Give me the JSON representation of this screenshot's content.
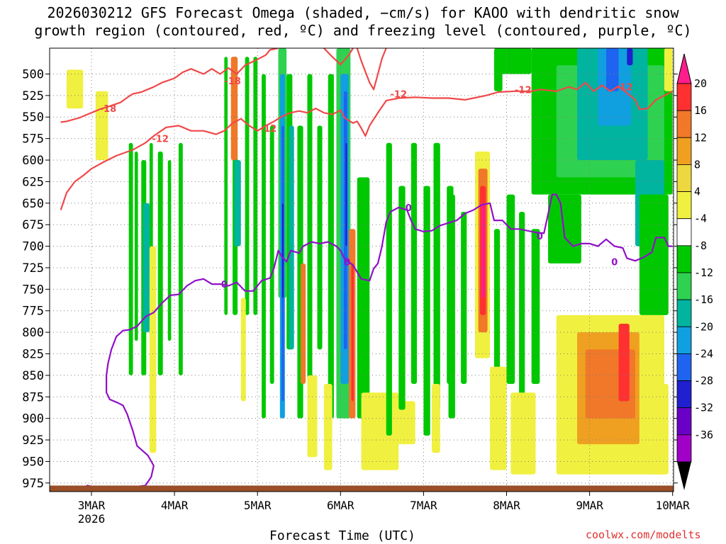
{
  "title_line1": "2026030212 GFS Forecast Omega (shaded, −cm/s) for KAOO with dendritic snow",
  "title_line2": "growth region (contoured, red, ºC) and freezing level (contoured, purple, ºC)",
  "x_axis_label": "Forecast Time (UTC)",
  "credit": "coolwx.com/modelts",
  "colors": {
    "temp_contour": "#f04848",
    "freezing_contour": "#9010c8",
    "terrain": "#9a4f28"
  },
  "chart_data": {
    "type": "heatmap",
    "title": "2026030212 GFS Forecast Omega (shaded, −cm/s) for KAOO with dendritic snow growth region (contoured, red, ºC) and freezing level (contoured, purple, ºC)",
    "xlabel": "Forecast Time (UTC)",
    "x_ticks": [
      {
        "label": "3MAR",
        "sublabel": "2026",
        "day": 3
      },
      {
        "label": "4MAR",
        "day": 4
      },
      {
        "label": "5MAR",
        "day": 5
      },
      {
        "label": "6MAR",
        "day": 6
      },
      {
        "label": "7MAR",
        "day": 7
      },
      {
        "label": "8MAR",
        "day": 8
      },
      {
        "label": "9MAR",
        "day": 9
      },
      {
        "label": "10MAR",
        "day": 10
      }
    ],
    "xlim": [
      2.63,
      10.0
    ],
    "y_ticks": [
      500,
      525,
      550,
      575,
      600,
      625,
      650,
      675,
      700,
      725,
      750,
      775,
      800,
      825,
      850,
      875,
      900,
      925,
      950,
      975
    ],
    "ylim": [
      470,
      985
    ],
    "y_reversed": true,
    "grid": true,
    "colorbar": {
      "labels": [
        20,
        16,
        12,
        8,
        4,
        -4,
        -8,
        -12,
        -16,
        -20,
        -24,
        -28,
        -32,
        -36
      ],
      "colors": [
        "#ff1c8c",
        "#ff3030",
        "#f07828",
        "#f0a020",
        "#eed840",
        "#f0f040",
        "#ffffff",
        "#00c800",
        "#2ed250",
        "#00b4a0",
        "#10a0e0",
        "#1e64f0",
        "#2020d0",
        "#6a00c8",
        "#a000c8",
        "#b4b4b4"
      ]
    },
    "series": [
      {
        "label": "-18",
        "contour_level": -18,
        "color": "#f04848",
        "points": [
          [
            2.63,
            556
          ],
          [
            2.7,
            555
          ],
          [
            2.85,
            551
          ],
          [
            3.0,
            545
          ],
          [
            3.1,
            541
          ],
          [
            3.2,
            538
          ],
          [
            3.35,
            533
          ],
          [
            3.45,
            526
          ],
          [
            3.5,
            523
          ],
          [
            3.6,
            521
          ],
          [
            3.75,
            515
          ],
          [
            3.85,
            510
          ],
          [
            4.0,
            505
          ],
          [
            4.1,
            498
          ],
          [
            4.2,
            494
          ],
          [
            4.35,
            500
          ],
          [
            4.45,
            494
          ],
          [
            4.55,
            500
          ],
          [
            4.65,
            493
          ],
          [
            4.75,
            500
          ],
          [
            4.85,
            490
          ],
          [
            5.0,
            483
          ],
          [
            5.1,
            478
          ],
          [
            5.15,
            472
          ],
          [
            5.25,
            470
          ]
        ]
      },
      {
        "label": "-12",
        "contour_level": -12,
        "color": "#f04848",
        "points": [
          [
            2.63,
            658
          ],
          [
            2.7,
            638
          ],
          [
            2.8,
            625
          ],
          [
            2.9,
            618
          ],
          [
            3.0,
            610
          ],
          [
            3.15,
            602
          ],
          [
            3.3,
            595
          ],
          [
            3.5,
            588
          ],
          [
            3.65,
            580
          ],
          [
            3.75,
            572
          ],
          [
            3.9,
            562
          ],
          [
            4.05,
            560
          ],
          [
            4.2,
            566
          ],
          [
            4.35,
            566
          ],
          [
            4.5,
            570
          ],
          [
            4.6,
            566
          ],
          [
            4.7,
            557
          ],
          [
            4.8,
            552
          ],
          [
            4.9,
            560
          ],
          [
            5.0,
            566
          ],
          [
            5.1,
            560
          ],
          [
            5.2,
            555
          ],
          [
            5.3,
            549
          ],
          [
            5.4,
            545
          ],
          [
            5.5,
            543
          ],
          [
            5.6,
            545
          ],
          [
            5.7,
            540
          ],
          [
            5.8,
            545
          ],
          [
            5.9,
            547
          ],
          [
            6.0,
            542
          ],
          [
            6.05,
            551
          ],
          [
            6.15,
            557
          ],
          [
            6.2,
            555
          ],
          [
            6.25,
            563
          ],
          [
            6.3,
            572
          ],
          [
            6.35,
            560
          ],
          [
            6.45,
            545
          ],
          [
            6.55,
            531
          ],
          [
            6.7,
            528
          ],
          [
            6.9,
            527
          ],
          [
            7.1,
            528
          ],
          [
            7.3,
            528
          ],
          [
            7.5,
            530
          ],
          [
            7.6,
            528
          ],
          [
            7.75,
            525
          ],
          [
            7.9,
            521
          ],
          [
            8.1,
            520
          ],
          [
            8.3,
            520
          ],
          [
            8.4,
            518
          ],
          [
            8.6,
            520
          ],
          [
            8.75,
            515
          ],
          [
            8.85,
            518
          ],
          [
            8.95,
            510
          ],
          [
            9.05,
            520
          ],
          [
            9.15,
            513
          ],
          [
            9.25,
            520
          ],
          [
            9.35,
            514
          ],
          [
            9.45,
            522
          ],
          [
            9.55,
            530
          ],
          [
            9.6,
            541
          ],
          [
            9.7,
            540
          ],
          [
            9.8,
            530
          ],
          [
            9.9,
            525
          ],
          [
            10.0,
            520
          ]
        ]
      },
      {
        "label": "-18",
        "contour_level": -18,
        "color": "#f04848",
        "points": [
          [
            5.8,
            470
          ],
          [
            5.9,
            480
          ],
          [
            6.0,
            489
          ],
          [
            6.1,
            478
          ],
          [
            6.15,
            470
          ]
        ]
      },
      {
        "label": "-18",
        "contour_level": -18,
        "color": "#f04848",
        "points": [
          [
            6.2,
            470
          ],
          [
            6.25,
            485
          ],
          [
            6.35,
            510
          ],
          [
            6.4,
            518
          ],
          [
            6.45,
            500
          ],
          [
            6.5,
            482
          ],
          [
            6.55,
            470
          ]
        ]
      },
      {
        "label": "0",
        "contour_level": 0,
        "color": "#9010c8",
        "points": [
          [
            2.9,
            981
          ],
          [
            2.95,
            978
          ],
          [
            3.05,
            980
          ],
          [
            3.4,
            981
          ],
          [
            3.65,
            978
          ],
          [
            3.72,
            968
          ],
          [
            3.75,
            955
          ],
          [
            3.68,
            943
          ],
          [
            3.55,
            932
          ],
          [
            3.5,
            915
          ],
          [
            3.43,
            895
          ],
          [
            3.38,
            885
          ],
          [
            3.32,
            882
          ],
          [
            3.22,
            878
          ],
          [
            3.18,
            870
          ],
          [
            3.18,
            850
          ],
          [
            3.2,
            836
          ],
          [
            3.24,
            820
          ],
          [
            3.3,
            805
          ],
          [
            3.38,
            798
          ],
          [
            3.46,
            797
          ],
          [
            3.55,
            793
          ],
          [
            3.65,
            782
          ],
          [
            3.75,
            777
          ],
          [
            3.85,
            766
          ],
          [
            3.95,
            757
          ],
          [
            4.05,
            756
          ],
          [
            4.15,
            746
          ],
          [
            4.25,
            740
          ],
          [
            4.35,
            738
          ],
          [
            4.45,
            744
          ],
          [
            4.55,
            744
          ],
          [
            4.65,
            746
          ],
          [
            4.75,
            742
          ],
          [
            4.85,
            752
          ],
          [
            4.95,
            752
          ],
          [
            5.05,
            740
          ],
          [
            5.15,
            737
          ],
          [
            5.2,
            725
          ],
          [
            5.25,
            705
          ],
          [
            5.3,
            713
          ],
          [
            5.35,
            718
          ],
          [
            5.4,
            705
          ],
          [
            5.5,
            708
          ],
          [
            5.55,
            700
          ],
          [
            5.65,
            695
          ],
          [
            5.75,
            697
          ],
          [
            5.85,
            695
          ],
          [
            5.95,
            700
          ],
          [
            6.0,
            705
          ],
          [
            6.05,
            715
          ],
          [
            6.15,
            722
          ],
          [
            6.25,
            738
          ],
          [
            6.35,
            740
          ],
          [
            6.4,
            726
          ],
          [
            6.45,
            720
          ],
          [
            6.5,
            700
          ],
          [
            6.55,
            672
          ],
          [
            6.6,
            660
          ],
          [
            6.7,
            655
          ],
          [
            6.8,
            658
          ],
          [
            6.85,
            670
          ],
          [
            6.9,
            680
          ],
          [
            7.0,
            683
          ],
          [
            7.1,
            682
          ],
          [
            7.2,
            676
          ],
          [
            7.4,
            670
          ],
          [
            7.5,
            662
          ],
          [
            7.6,
            658
          ],
          [
            7.7,
            652
          ],
          [
            7.8,
            650
          ],
          [
            7.85,
            670
          ],
          [
            7.95,
            670
          ],
          [
            8.05,
            680
          ],
          [
            8.15,
            680
          ],
          [
            8.25,
            682
          ],
          [
            8.35,
            684
          ],
          [
            8.45,
            685
          ],
          [
            8.5,
            663
          ],
          [
            8.55,
            640
          ],
          [
            8.6,
            640
          ],
          [
            8.65,
            650
          ],
          [
            8.7,
            690
          ],
          [
            8.8,
            700
          ],
          [
            8.9,
            697
          ],
          [
            9.0,
            697
          ],
          [
            9.1,
            700
          ],
          [
            9.2,
            692
          ],
          [
            9.3,
            700
          ],
          [
            9.4,
            702
          ],
          [
            9.45,
            714
          ],
          [
            9.55,
            717
          ],
          [
            9.65,
            713
          ],
          [
            9.75,
            707
          ],
          [
            9.8,
            690
          ],
          [
            9.9,
            690
          ],
          [
            9.95,
            700
          ],
          [
            10.0,
            700
          ]
        ]
      }
    ],
    "terrain_pressure": 978
  }
}
